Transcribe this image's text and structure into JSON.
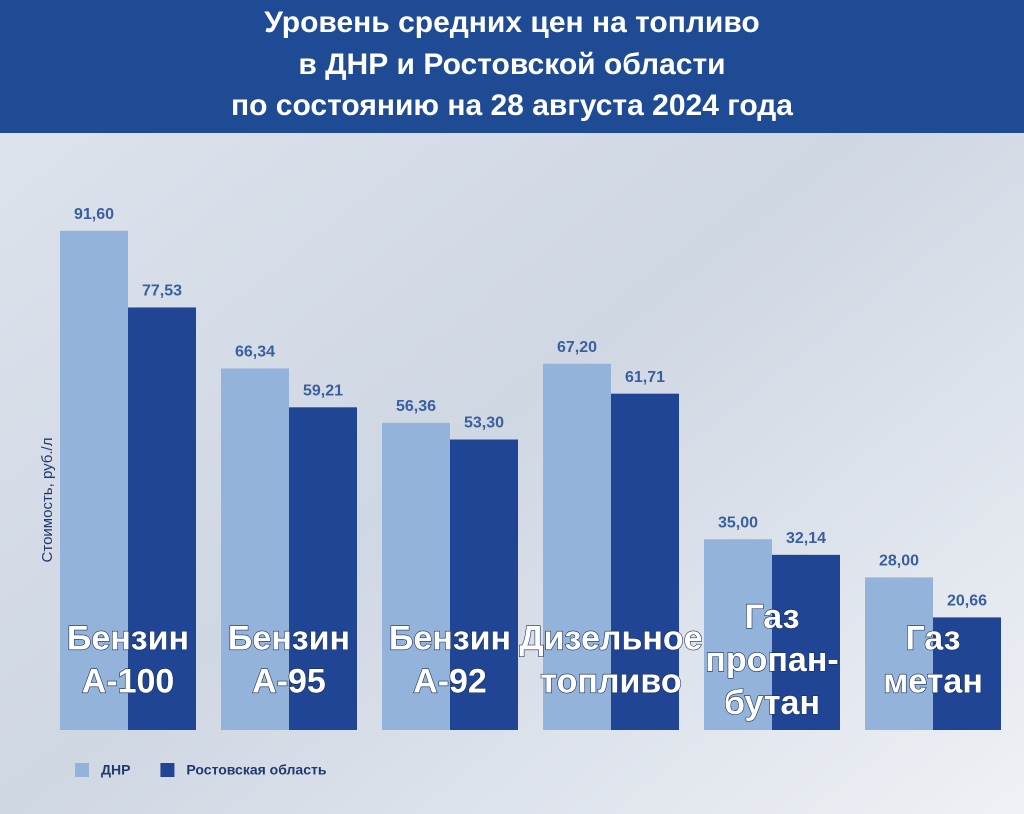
{
  "chart_data": {
    "type": "bar",
    "title": [
      "Уровень средних цен на топливо",
      "в ДНР и Ростовской области",
      "по состоянию на 28 августа 2024 года"
    ],
    "y_label": "Стоимость, руб./л",
    "categories": [
      [
        "Бензин",
        "А-100"
      ],
      [
        "Бензин",
        "А-95"
      ],
      [
        "Бензин",
        "А-92"
      ],
      [
        "Дизельное",
        "топливо"
      ],
      [
        "Газ",
        "пропан-",
        "бутан"
      ],
      [
        "Газ",
        "метан"
      ]
    ],
    "series": [
      {
        "name": "ДНР",
        "color": "#94b3da",
        "values": [
          91.6,
          66.34,
          56.36,
          67.2,
          35.0,
          28.0
        ],
        "value_labels": [
          "91,60",
          "66,34",
          "56,36",
          "67,20",
          "35,00",
          "28,00"
        ]
      },
      {
        "name": "Ростовская область",
        "color": "#1f4594",
        "values": [
          77.53,
          59.21,
          53.3,
          61.71,
          32.14,
          20.66
        ],
        "value_labels": [
          "77,53",
          "59,21",
          "53,30",
          "61,71",
          "32,14",
          "20,66"
        ]
      }
    ],
    "ylim": [
      0,
      100
    ]
  }
}
